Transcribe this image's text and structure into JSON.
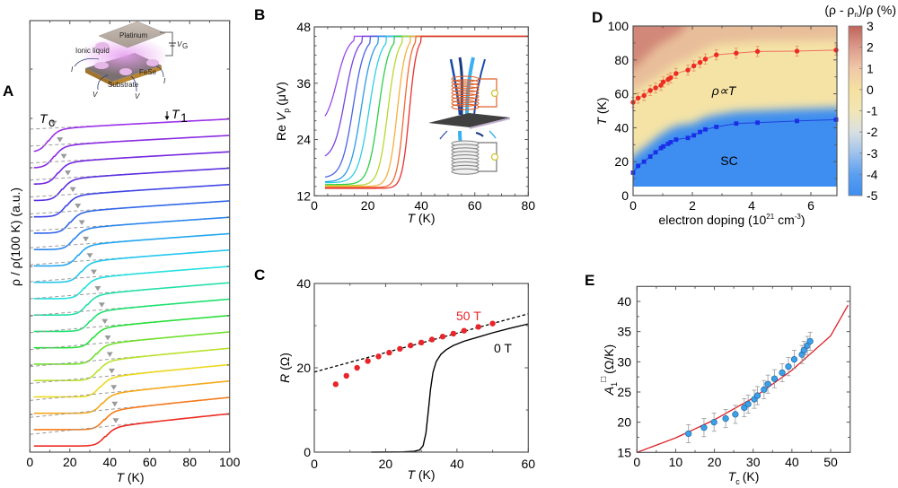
{
  "figure": {
    "panels": [
      "A",
      "B",
      "C",
      "D",
      "E"
    ]
  },
  "chart_data": [
    {
      "panel": "A",
      "type": "line",
      "xlabel": "T (K)",
      "xlabel_var": "T",
      "xlabel_unit": "(K)",
      "ylabel": "ρ / ρ(100 K) (a.u.)",
      "xlim": [
        0,
        100
      ],
      "xticks": [
        0,
        20,
        40,
        60,
        80,
        100
      ],
      "yticks_labeled": false,
      "n_curves": 19,
      "curve_colors": [
        "#9b30e8",
        "#8a2be2",
        "#7326e0",
        "#5a2ee0",
        "#3f45e6",
        "#2f66ea",
        "#2a85ee",
        "#22a6f0",
        "#22c6ee",
        "#24e0e0",
        "#22e0a8",
        "#1ee070",
        "#28e03a",
        "#6ee02a",
        "#b8e22a",
        "#ecd81e",
        "#f5a81a",
        "#f57a1a",
        "#ee2a22"
      ],
      "transition_midpoints_K": [
        9.3,
        12,
        14,
        16,
        18,
        20,
        22,
        24,
        25.5,
        27,
        28.5,
        30,
        31.5,
        33,
        34,
        35,
        36,
        37,
        37.6
      ],
      "tc_markers_K": [
        12,
        15,
        17,
        19,
        21.5,
        24,
        26,
        28,
        30,
        32,
        34,
        36,
        37.5,
        39,
        40,
        41,
        42,
        42.5,
        43
      ],
      "annotations": {
        "tc_label": "T",
        "tc_sub": "c",
        "t1_label": "T",
        "t1_sub": "1",
        "t1_arrow_T": 68
      },
      "inset": {
        "labels": {
          "platinum": "Platinum",
          "ionic_liquid": "Ionic liquid",
          "vg": "V",
          "vg_sub": "G",
          "fese": "FeSe",
          "substrate": "Substrate",
          "i_plus": "I",
          "i_minus": "I",
          "v_plus": "V",
          "v_minus": "V"
        }
      }
    },
    {
      "panel": "B",
      "type": "line",
      "xlabel_var": "T",
      "xlabel_unit": "(K)",
      "ylabel_prefix": "Re ",
      "ylabel_var": "V",
      "ylabel_sub": "p",
      "ylabel_unit": "(μV)",
      "xlim": [
        0,
        80
      ],
      "ylim": [
        12,
        48
      ],
      "xticks": [
        0,
        20,
        40,
        60,
        80
      ],
      "yticks": [
        12,
        24,
        36,
        48
      ],
      "series": [
        {
          "color": "#9b4ae8",
          "T_start": 4,
          "V_start": 29.0,
          "T_mid": 8.5,
          "T_sat": 14
        },
        {
          "color": "#7a44e0",
          "T_start": 4,
          "V_start": 20.5,
          "T_mid": 11.5,
          "T_sat": 17
        },
        {
          "color": "#4a62e4",
          "T_start": 4,
          "V_start": 16.0,
          "T_mid": 14.5,
          "T_sat": 20
        },
        {
          "color": "#2a9ae8",
          "T_start": 4,
          "V_start": 15.0,
          "T_mid": 17.5,
          "T_sat": 23
        },
        {
          "color": "#2cd0e0",
          "T_start": 4,
          "V_start": 14.8,
          "T_mid": 20.5,
          "T_sat": 26
        },
        {
          "color": "#2ad048",
          "T_start": 4,
          "V_start": 14.4,
          "T_mid": 24,
          "T_sat": 29
        },
        {
          "color": "#b8d830",
          "T_start": 4,
          "V_start": 14.2,
          "T_mid": 27.5,
          "T_sat": 32
        },
        {
          "color": "#f5b040",
          "T_start": 4,
          "V_start": 14.0,
          "T_mid": 31,
          "T_sat": 35
        },
        {
          "color": "#f06a30",
          "T_start": 4,
          "V_start": 13.8,
          "T_mid": 33.5,
          "T_sat": 37
        },
        {
          "color": "#e83030",
          "T_start": 4,
          "V_start": 13.6,
          "T_mid": 35.5,
          "T_sat": 39
        }
      ],
      "saturation_value": 46
    },
    {
      "panel": "C",
      "type": "scatter+line",
      "xlabel_var": "T",
      "xlabel_unit": "(K)",
      "ylabel_var": "R",
      "ylabel_unit": "(Ω)",
      "xlim": [
        0,
        60
      ],
      "ylim": [
        0,
        40
      ],
      "xticks": [
        0,
        20,
        40,
        60
      ],
      "yticks": [
        0,
        20,
        40
      ],
      "series": [
        {
          "name": "50 T",
          "color": "#e8252a",
          "x": [
            6,
            9,
            12,
            15,
            18,
            21,
            24,
            27,
            30,
            33,
            36,
            39,
            42,
            46,
            50
          ],
          "y": [
            16.1,
            18.1,
            20.0,
            21.6,
            22.7,
            23.6,
            24.5,
            25.3,
            26.0,
            26.7,
            27.4,
            28.1,
            28.8,
            29.7,
            30.5
          ]
        },
        {
          "name": "0 T",
          "color": "#000000",
          "x": [
            16,
            25,
            28,
            29.5,
            30.5,
            31.3,
            32,
            32.6,
            33.3,
            34.2,
            35.5,
            37,
            39,
            42,
            46,
            50,
            55,
            60
          ],
          "y": [
            0,
            0.05,
            0.2,
            0.5,
            1.5,
            4.5,
            10,
            15,
            19,
            21.5,
            23.2,
            24.3,
            25.3,
            26.3,
            27.3,
            28.3,
            29.4,
            30.4
          ]
        },
        {
          "name": "linear fit",
          "style": "dashed",
          "color": "#000000",
          "x": [
            0,
            60
          ],
          "y": [
            19.0,
            32.8
          ]
        }
      ],
      "labels": {
        "field_high": "50 T",
        "field_zero": "0 T"
      }
    },
    {
      "panel": "D",
      "type": "heatmap",
      "xlabel": "electron doping (10²¹ cm⁻³)",
      "xlabel_main": "electron doping (10",
      "xlabel_sup1": "21",
      "xlabel_mid": " cm",
      "xlabel_sup2": "-3",
      "xlabel_end": ")",
      "ylabel_var": "T",
      "ylabel_unit": "(K)",
      "xlim": [
        0,
        6.9
      ],
      "ylim": [
        0,
        100
      ],
      "xticks": [
        0,
        2,
        4,
        6
      ],
      "yticks": [
        0,
        20,
        40,
        60,
        80,
        100
      ],
      "colorbar": {
        "title": "(ρ - ρn)/ρ (%)",
        "title_pre": "(ρ - ρ",
        "title_sub": "n",
        "title_post": ")/ρ (%)",
        "range": [
          -5,
          3
        ],
        "ticks": [
          3,
          2,
          1,
          0,
          -1,
          -2,
          -3,
          -4,
          -5
        ],
        "colors": [
          "#3d8ef0",
          "#5a9ef0",
          "#9ec2ec",
          "#d9dfe2",
          "#f2e6b4",
          "#f5e0a0",
          "#f0c8a8",
          "#dc9a8a",
          "#c0645a"
        ]
      },
      "series": [
        {
          "name": "T1",
          "color": "#ee2a22",
          "x": [
            0,
            0.17,
            0.37,
            0.58,
            0.76,
            0.94,
            1.02,
            1.18,
            1.27,
            1.45,
            1.85,
            2.05,
            2.26,
            2.44,
            2.81,
            3.48,
            4.2,
            5.53,
            6.85
          ],
          "y": [
            55,
            57.5,
            59,
            62,
            63.5,
            65,
            67,
            68.5,
            69.5,
            72,
            74,
            76.5,
            78.5,
            80.5,
            83,
            84,
            85,
            85.2,
            85.8
          ],
          "error": 3
        },
        {
          "name": "Tc",
          "color": "#1a2ee8",
          "x": [
            0,
            0.17,
            0.37,
            0.58,
            0.76,
            0.94,
            1.02,
            1.18,
            1.27,
            1.45,
            1.85,
            2.05,
            2.26,
            2.44,
            2.81,
            3.48,
            4.2,
            5.53,
            6.85
          ],
          "y": [
            13.5,
            17.5,
            20,
            23,
            25.5,
            28,
            29,
            30.5,
            31.5,
            33,
            34,
            35.5,
            37.5,
            39,
            40.5,
            42.5,
            43,
            44,
            44.8
          ]
        }
      ],
      "annotations": {
        "linear_region": "ρ∝T",
        "linear_pre": "ρ∝",
        "linear_var": "T",
        "sc_region": "SC"
      }
    },
    {
      "panel": "E",
      "type": "scatter+line",
      "xlabel_var": "T",
      "xlabel_sub": "c",
      "xlabel_unit": "(K)",
      "ylabel_var": "A",
      "ylabel_sub": "1",
      "ylabel_sup": "□",
      "ylabel_unit": "(Ω/K)",
      "xlim": [
        0,
        55
      ],
      "ylim": [
        15,
        42
      ],
      "xticks": [
        0,
        10,
        20,
        30,
        40,
        50
      ],
      "yticks": [
        15,
        20,
        25,
        30,
        35,
        40
      ],
      "series": [
        {
          "name": "data",
          "color": "#3aa0e8",
          "x": [
            13.3,
            17.3,
            19.9,
            22.9,
            25.4,
            27.7,
            28.7,
            30.3,
            31.1,
            32.8,
            33.8,
            35.5,
            37.5,
            39.1,
            40.6,
            42.6,
            43.1,
            44.0,
            44.7
          ],
          "y": [
            18.1,
            19.1,
            20.0,
            20.6,
            21.3,
            22.4,
            23.0,
            23.8,
            24.4,
            25.4,
            26.3,
            27.2,
            28.2,
            29.2,
            30.4,
            31.2,
            31.9,
            32.7,
            33.4
          ],
          "yerr": 1.5,
          "xerr": 0.8
        },
        {
          "name": "fit",
          "color": "#dd1f26",
          "x": [
            0,
            10,
            20,
            30,
            40,
            50,
            54.5
          ],
          "y": [
            15.0,
            17.4,
            20.4,
            24.0,
            28.6,
            34.3,
            39.4
          ]
        }
      ]
    }
  ]
}
